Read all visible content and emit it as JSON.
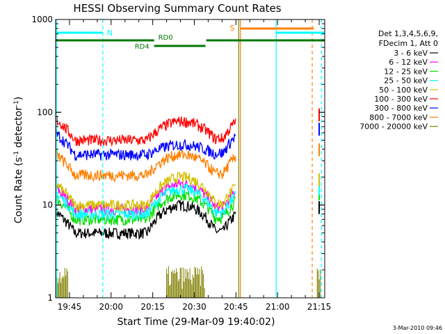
{
  "chart_data": {
    "type": "line",
    "title": "HESSI Observing Summary Count Rates",
    "xlabel": "Start Time (29-Mar-09 19:40:02)",
    "ylabel_main": "Count Rate (s",
    "ylabel_sup1": "-1",
    "ylabel_mid": " detector",
    "ylabel_sup2": "-1",
    "ylabel_end": ")",
    "ylog": true,
    "ylim": [
      1,
      1000
    ],
    "xlim_minutes": [
      0,
      97
    ],
    "x_ticks": [
      "19:45",
      "20:00",
      "20:15",
      "20:30",
      "20:45",
      "21:00",
      "21:15"
    ],
    "y_ticks": [
      "1",
      "10",
      "100",
      "1000"
    ],
    "legend": {
      "header": [
        "Det 1,3,4,5,6,9,",
        "FDecim 1, Att 0"
      ],
      "placement": "right"
    },
    "series": [
      {
        "name": "3 - 6 keV",
        "color": "#000000",
        "base": 5.0,
        "peak": 10.0
      },
      {
        "name": "6 - 12 keV",
        "color": "#ff00ff",
        "base": 9.0,
        "peak": 17.0
      },
      {
        "name": "12 - 25 keV",
        "color": "#00dd00",
        "base": 7.0,
        "peak": 13.0
      },
      {
        "name": "25 - 50 keV",
        "color": "#00ffff",
        "base": 8.0,
        "peak": 15.0
      },
      {
        "name": "50 - 100 keV",
        "color": "#d4c000",
        "base": 10.0,
        "peak": 20.0
      },
      {
        "name": "100 - 300 keV",
        "color": "#ff0000",
        "base": 50.0,
        "peak": 80.0
      },
      {
        "name": "300 - 800 keV",
        "color": "#0000ff",
        "base": 35.0,
        "peak": 45.0
      },
      {
        "name": "800 - 7000 keV",
        "color": "#ff8000",
        "base": 21.0,
        "peak": 35.0
      },
      {
        "name": "7000 - 20000 keV",
        "color": "#808000",
        "base": 1.5,
        "peak": 2.0
      }
    ],
    "flag_labels": {
      "night": "N",
      "saa": "S",
      "rd0": "RD0",
      "rd4": "RD4"
    }
  },
  "footer": {
    "timestamp": "3-Mar-2010 09:46"
  }
}
